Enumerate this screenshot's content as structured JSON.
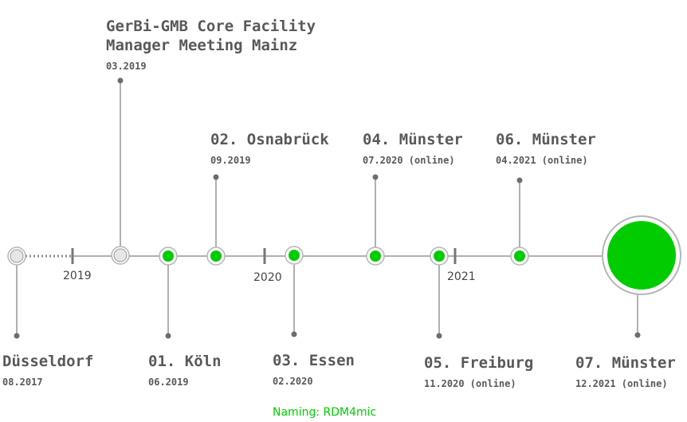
{
  "colors": {
    "line": "#b0b0b0",
    "node_ring": "#b5b5b5",
    "active_fill": "#00cc00",
    "inactive_fill": "#e6e6e6",
    "text": "#595959",
    "footer": "#00cc00"
  },
  "years": [
    "2019",
    "2020",
    "2021"
  ],
  "events": [
    {
      "title": "Düsseldorf",
      "date": "08.2017",
      "status": "inactive"
    },
    {
      "title_lines": [
        "GerBi-GMB Core Facility",
        "Manager Meeting Mainz"
      ],
      "date": "03.2019",
      "status": "inactive"
    },
    {
      "title": "01. Köln",
      "date": "06.2019",
      "status": "active"
    },
    {
      "title": "02. Osnabrück",
      "date": "09.2019",
      "status": "active"
    },
    {
      "title": "03. Essen",
      "date": "02.2020",
      "status": "active"
    },
    {
      "title": "04. Münster",
      "date": "07.2020 (online)",
      "status": "active"
    },
    {
      "title": "05. Freiburg",
      "date": "11.2020 (online)",
      "status": "active"
    },
    {
      "title": "06. Münster",
      "date": "04.2021 (online)",
      "status": "active"
    },
    {
      "title": "07. Münster",
      "date": "12.2021 (online)",
      "status": "active"
    }
  ],
  "footer": "Naming: RDM4mic"
}
